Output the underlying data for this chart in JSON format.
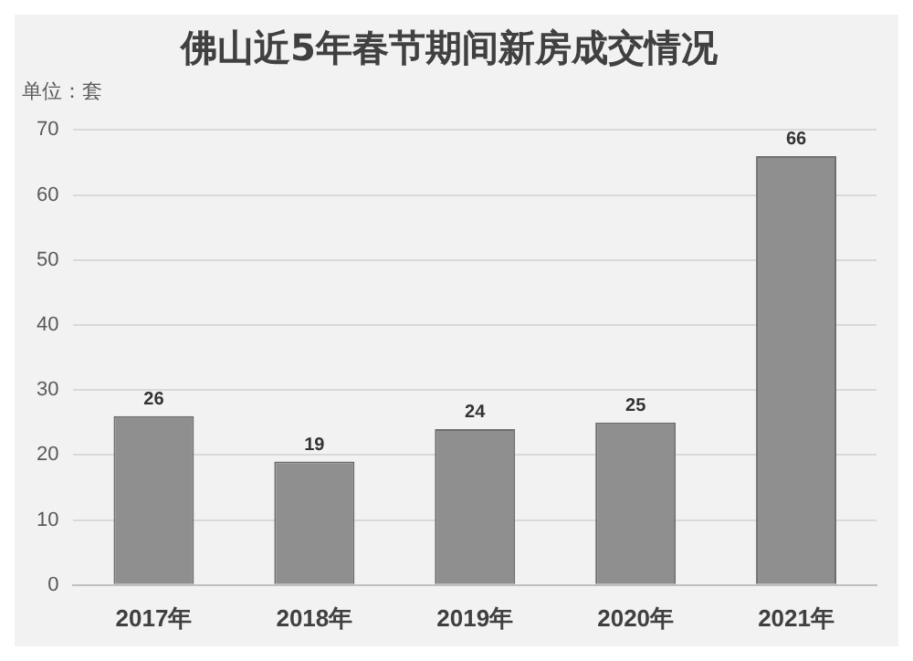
{
  "chart_data": {
    "type": "bar",
    "title": "佛山近5年春节期间新房成交情况",
    "subtitle": "单位：套",
    "categories": [
      "2017年",
      "2018年",
      "2019年",
      "2020年",
      "2021年"
    ],
    "values": [
      26,
      19,
      24,
      25,
      66
    ],
    "color": "#8f8f8f",
    "ylim": [
      0,
      70
    ],
    "yticks": [
      0,
      10,
      20,
      30,
      40,
      50,
      60,
      70
    ],
    "grid": "y",
    "data_labels": true,
    "legend": false
  }
}
